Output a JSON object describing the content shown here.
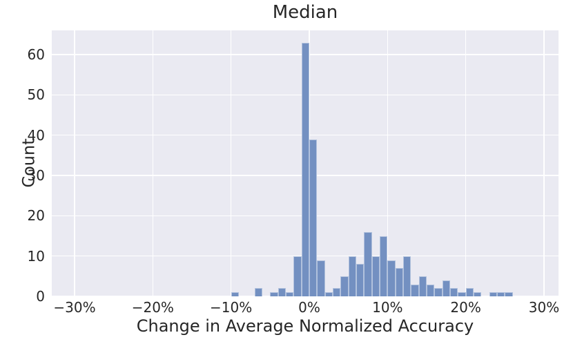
{
  "chart_data": {
    "type": "bar",
    "subtype": "histogram",
    "title": "Median",
    "xlabel": "Change in Average Normalized Accuracy",
    "ylabel": "Count",
    "bin_width_percent": 1,
    "bins": [
      {
        "start": -10,
        "count": 1
      },
      {
        "start": -7,
        "count": 2
      },
      {
        "start": -5,
        "count": 1
      },
      {
        "start": -4,
        "count": 2
      },
      {
        "start": -3,
        "count": 1
      },
      {
        "start": -2,
        "count": 10
      },
      {
        "start": -1,
        "count": 63
      },
      {
        "start": 0,
        "count": 39
      },
      {
        "start": 1,
        "count": 9
      },
      {
        "start": 2,
        "count": 1
      },
      {
        "start": 3,
        "count": 2
      },
      {
        "start": 4,
        "count": 5
      },
      {
        "start": 5,
        "count": 10
      },
      {
        "start": 6,
        "count": 8
      },
      {
        "start": 7,
        "count": 16
      },
      {
        "start": 8,
        "count": 10
      },
      {
        "start": 9,
        "count": 15
      },
      {
        "start": 10,
        "count": 9
      },
      {
        "start": 11,
        "count": 7
      },
      {
        "start": 12,
        "count": 10
      },
      {
        "start": 13,
        "count": 3
      },
      {
        "start": 14,
        "count": 5
      },
      {
        "start": 15,
        "count": 3
      },
      {
        "start": 16,
        "count": 2
      },
      {
        "start": 17,
        "count": 4
      },
      {
        "start": 18,
        "count": 2
      },
      {
        "start": 19,
        "count": 1
      },
      {
        "start": 20,
        "count": 2
      },
      {
        "start": 21,
        "count": 1
      },
      {
        "start": 23,
        "count": 1
      },
      {
        "start": 24,
        "count": 1
      },
      {
        "start": 25,
        "count": 1
      }
    ],
    "x_ticks": [
      {
        "value": -30,
        "label": "−30%"
      },
      {
        "value": -20,
        "label": "−20%"
      },
      {
        "value": -10,
        "label": "−10%"
      },
      {
        "value": 0,
        "label": "0%"
      },
      {
        "value": 10,
        "label": "10%"
      },
      {
        "value": 20,
        "label": "20%"
      },
      {
        "value": 30,
        "label": "30%"
      }
    ],
    "y_ticks": [
      0,
      10,
      20,
      30,
      40,
      50,
      60
    ],
    "xlim_percent": [
      -32.9,
      31.9
    ],
    "ylim": [
      0,
      66
    ],
    "grid": true,
    "legend": null,
    "colors": {
      "bar": "#7390c1",
      "bar_edge": "rgba(255,255,255,0.45)",
      "plot_background": "#eaeaf2",
      "gridline": "#ffffff",
      "text": "#262626",
      "figure_background": "#ffffff"
    }
  }
}
